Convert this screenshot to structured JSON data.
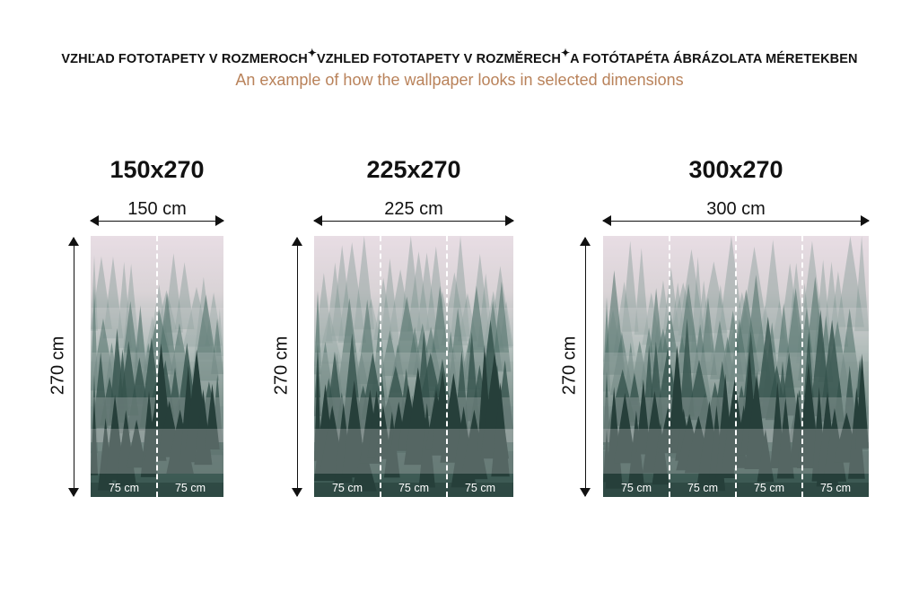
{
  "header": {
    "titles": [
      "VZHĽAD FOTOTAPETY V ROZMEROCH",
      "VZHLED FOTOTAPETY V ROZMĚRECH",
      "A FOTÓTAPÉTA ÁBRÁZOLATA MÉRETEKBEN"
    ],
    "separator_icon": "sparkle-icon",
    "subtitle": "An example of how the wallpaper looks in selected dimensions"
  },
  "colors": {
    "subtitle": "#b9825a",
    "text": "#111111",
    "forest_dark": "#2f4a44",
    "fog": "#e8dde4"
  },
  "panels": [
    {
      "title": "150x270",
      "width_label": "150 cm",
      "height_label": "270 cm",
      "segments": [
        "75 cm",
        "75 cm"
      ]
    },
    {
      "title": "225x270",
      "width_label": "225 cm",
      "height_label": "270 cm",
      "segments": [
        "75 cm",
        "75 cm",
        "75 cm"
      ]
    },
    {
      "title": "300x270",
      "width_label": "300 cm",
      "height_label": "270 cm",
      "segments": [
        "75 cm",
        "75 cm",
        "75 cm",
        "75 cm"
      ]
    }
  ]
}
